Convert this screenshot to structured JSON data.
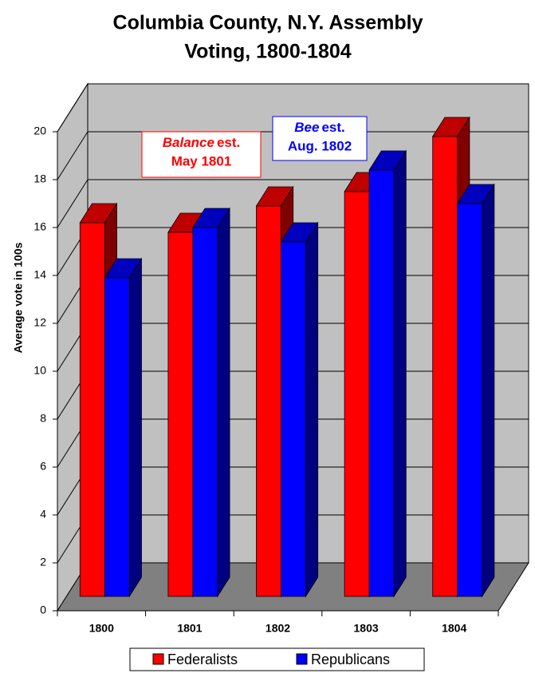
{
  "chart_data": {
    "type": "bar3d",
    "title": [
      "Columbia County, N.Y. Assembly",
      "Voting, 1800-1804"
    ],
    "ylabel": "Average vote in 100s",
    "categories": [
      "1800",
      "1801",
      "1802",
      "1803",
      "1804"
    ],
    "series": [
      {
        "name": "Federalists",
        "color": "#ff0000",
        "values": [
          15.6,
          15.2,
          16.3,
          16.9,
          19.2
        ]
      },
      {
        "name": "Republicans",
        "color": "#0000ff",
        "values": [
          13.3,
          15.4,
          14.8,
          17.8,
          16.4
        ]
      }
    ],
    "ylim": [
      0,
      20
    ],
    "yticks": [
      0,
      2,
      4,
      6,
      8,
      10,
      12,
      14,
      16,
      18,
      20
    ],
    "grid": true,
    "annotations": [
      {
        "italic": "Balance",
        "rest": "est.",
        "date": "May 1801",
        "color": "#ff0000"
      },
      {
        "italic": "Bee",
        "rest": "est.",
        "date": "Aug. 1802",
        "color": "#0000ff"
      }
    ],
    "legend": "bottom"
  }
}
